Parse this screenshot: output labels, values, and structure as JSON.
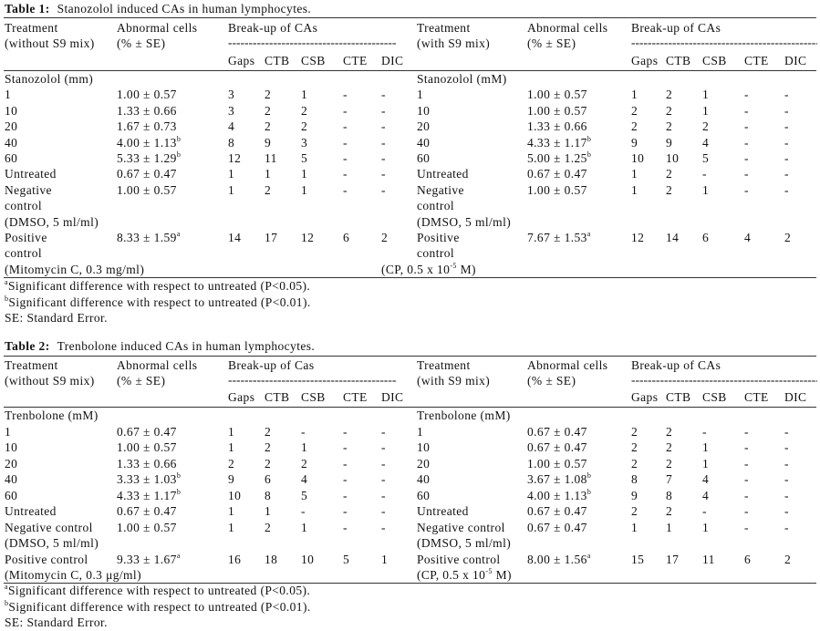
{
  "tables": [
    {
      "label": "Table 1:",
      "title": "Stanozolol induced CAs in human lymphocytes.",
      "halves": [
        {
          "treatment_h1": "Treatment",
          "treatment_h2": "(without S9 mix)",
          "abnormal_h1": "Abnormal cells",
          "abnormal_h2": "(% ± SE)",
          "breakup_h": "Break-up of CAs",
          "cols": [
            "Gaps",
            "CTB",
            "CSB",
            "CTE",
            "DIC"
          ],
          "lines": [
            {
              "t": "Stanozolol (mm)"
            },
            {
              "t": "1",
              "a": "1.00 ± 0.57",
              "v": [
                "3",
                "2",
                "1",
                "-",
                "-"
              ]
            },
            {
              "t": "10",
              "a": "1.33 ± 0.66",
              "v": [
                "3",
                "2",
                "2",
                "-",
                "-"
              ]
            },
            {
              "t": "20",
              "a": "1.67 ± 0.73",
              "v": [
                "4",
                "2",
                "2",
                "-",
                "-"
              ]
            },
            {
              "t": "40",
              "a": "4.00 ± 1.13",
              "s": "b",
              "v": [
                "8",
                "9",
                "3",
                "-",
                "-"
              ]
            },
            {
              "t": "60",
              "a": "5.33 ± 1.29",
              "s": "b",
              "v": [
                "12",
                "11",
                "5",
                "-",
                "-"
              ]
            },
            {
              "t": "Untreated",
              "a": "0.67 ± 0.47",
              "v": [
                "1",
                "1",
                "1",
                "-",
                "-"
              ]
            },
            {
              "t": "Negative",
              "a": "1.00 ± 0.57",
              "v": [
                "1",
                "2",
                "1",
                "-",
                "-"
              ]
            },
            {
              "t": "control"
            },
            {
              "t": "(DMSO, 5 ml/ml)"
            },
            {
              "t": "Positive",
              "a": "8.33 ± 1.59",
              "s": "a",
              "v": [
                "14",
                "17",
                "12",
                "6",
                "2"
              ]
            },
            {
              "t": "control"
            },
            {
              "t": "(Mitomycin C, 0.3 mg/ml)"
            }
          ]
        },
        {
          "treatment_h1": "Treatment",
          "treatment_h2": "(with S9 mix)",
          "abnormal_h1": "Abnormal cells",
          "abnormal_h2": "(% ± SE)",
          "breakup_h": "Break-up of CAs",
          "cols": [
            "Gaps",
            "CTB",
            "CSB",
            "CTE",
            "DIC"
          ],
          "lines": [
            {
              "t": "Stanozolol (mM)"
            },
            {
              "t": "1",
              "a": "1.00 ± 0.57",
              "v": [
                "1",
                "2",
                "1",
                "-",
                "-"
              ]
            },
            {
              "t": "10",
              "a": "1.00 ± 0.57",
              "v": [
                "2",
                "2",
                "1",
                "-",
                "-"
              ]
            },
            {
              "t": "20",
              "a": "1.33 ± 0.66",
              "v": [
                "2",
                "2",
                "2",
                "-",
                "-"
              ]
            },
            {
              "t": "40",
              "a": "4.33 ± 1.17",
              "s": "b",
              "v": [
                "9",
                "9",
                "4",
                "-",
                "-"
              ]
            },
            {
              "t": "60",
              "a": "5.00 ± 1.25",
              "s": "b",
              "v": [
                "10",
                "10",
                "5",
                "-",
                "-"
              ]
            },
            {
              "t": "Untreated",
              "a": "0.67 ± 0.47",
              "v": [
                "1",
                "2",
                "-",
                "-",
                "-"
              ]
            },
            {
              "t": "Negative",
              "a": "1.00 ± 0.57",
              "v": [
                "1",
                "2",
                "1",
                "-",
                "-"
              ]
            },
            {
              "t": "control"
            },
            {
              "t": "(DMSO, 5 ml/ml)"
            },
            {
              "t": "Positive",
              "a": "7.67 ± 1.53",
              "s": "a",
              "v": [
                "12",
                "14",
                "6",
                "4",
                "2"
              ]
            },
            {
              "t": "control"
            },
            {
              "t": "(CP, 0.5 x 10",
              "ts": "-5",
              "tt": " M)"
            }
          ]
        }
      ],
      "footnotes": [
        {
          "sup": "a",
          "text": "Significant difference with respect to untreated (P<0.05)."
        },
        {
          "sup": "b",
          "text": "Significant difference with respect to untreated (P<0.01)."
        },
        {
          "sup": "",
          "text": "SE: Standard Error."
        }
      ]
    },
    {
      "label": "Table 2:",
      "title": "Trenbolone induced CAs in human lymphocytes.",
      "halves": [
        {
          "treatment_h1": "Treatment",
          "treatment_h2": "(without S9 mix)",
          "abnormal_h1": "Abnormal cells",
          "abnormal_h2": "(% ± SE)",
          "breakup_h": "Break-up of Cas",
          "cols": [
            "Gaps",
            "CTB",
            "CSB",
            "CTE",
            "DIC"
          ],
          "lines": [
            {
              "t": "Trenbolone (mM)"
            },
            {
              "t": "1",
              "a": "0.67 ± 0.47",
              "v": [
                "1",
                "2",
                "-",
                "-",
                "-"
              ]
            },
            {
              "t": "10",
              "a": "1.00 ± 0.57",
              "v": [
                "1",
                "2",
                "1",
                "-",
                "-"
              ]
            },
            {
              "t": "20",
              "a": "1.33 ± 0.66",
              "v": [
                "2",
                "2",
                "2",
                "-",
                "-"
              ]
            },
            {
              "t": "40",
              "a": "3.33 ± 1.03",
              "s": "b",
              "v": [
                "9",
                "6",
                "4",
                "-",
                "-"
              ]
            },
            {
              "t": "60",
              "a": "4.33 ± 1.17",
              "s": "b",
              "v": [
                "10",
                "8",
                "5",
                "-",
                "-"
              ]
            },
            {
              "t": "Untreated",
              "a": "0.67 ± 0.47",
              "v": [
                "1",
                "1",
                "-",
                "-",
                "-"
              ]
            },
            {
              "t": "Negative control",
              "a": "1.00 ± 0.57",
              "v": [
                "1",
                "2",
                "1",
                "-",
                "-"
              ]
            },
            {
              "t": "(DMSO, 5 ml/ml)"
            },
            {
              "t": "Positive control",
              "a": "9.33 ± 1.67",
              "s": "a",
              "v": [
                "16",
                "18",
                "10",
                "5",
                "1"
              ]
            },
            {
              "t": "(Mitomycin C, 0.3 μg/ml)"
            }
          ]
        },
        {
          "treatment_h1": "Treatment",
          "treatment_h2": "(with S9 mix)",
          "abnormal_h1": "Abnormal cells",
          "abnormal_h2": "(% ± SE)",
          "breakup_h": "Break-up of CAs",
          "cols": [
            "Gaps",
            "CTB",
            "CSB",
            "CTE",
            "DIC"
          ],
          "lines": [
            {
              "t": "Trenbolone (mM)"
            },
            {
              "t": "1",
              "a": "0.67 ± 0.47",
              "v": [
                "2",
                "2",
                "-",
                "-",
                "-"
              ]
            },
            {
              "t": "10",
              "a": "0.67 ± 0.47",
              "v": [
                "2",
                "2",
                "1",
                "-",
                "-"
              ]
            },
            {
              "t": "20",
              "a": "1.00 ± 0.57",
              "v": [
                "2",
                "2",
                "1",
                "-",
                "-"
              ]
            },
            {
              "t": "40",
              "a": "3.67 ± 1.08",
              "s": "b",
              "v": [
                "8",
                "7",
                "4",
                "-",
                "-"
              ]
            },
            {
              "t": "60",
              "a": "4.00 ± 1.13",
              "s": "b",
              "v": [
                "9",
                "8",
                "4",
                "-",
                "-"
              ]
            },
            {
              "t": "Untreated",
              "a": "0.67 ± 0.47",
              "v": [
                "2",
                "2",
                "-",
                "-",
                "-"
              ]
            },
            {
              "t": "Negative control",
              "a": "0.67 ± 0.47",
              "v": [
                "1",
                "1",
                "1",
                "-",
                "-"
              ]
            },
            {
              "t": "(DMSO, 5 ml/ml)"
            },
            {
              "t": "Positive control",
              "a": "8.00 ± 1.56",
              "s": "a",
              "v": [
                "15",
                "17",
                "11",
                "6",
                "2"
              ]
            },
            {
              "t": "(CP, 0.5 x 10",
              "ts": "-5",
              "tt": " M)"
            }
          ]
        }
      ],
      "footnotes": [
        {
          "sup": "a",
          "text": "Significant difference with respect to untreated (P<0.05)."
        },
        {
          "sup": "b",
          "text": "Significant difference with respect to untreated (P<0.01)."
        },
        {
          "sup": "",
          "text": "SE: Standard Error."
        }
      ]
    }
  ]
}
